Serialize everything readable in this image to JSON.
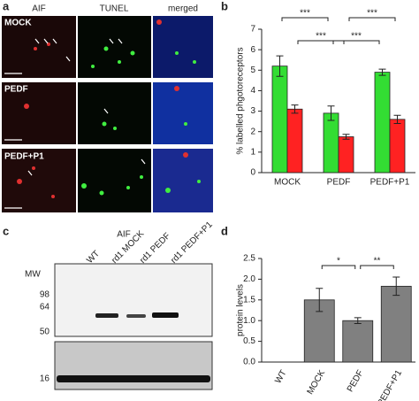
{
  "panel_labels": [
    "a",
    "b",
    "c",
    "d"
  ],
  "panel_a": {
    "columns": [
      "AIF",
      "TUNEL",
      "merged"
    ],
    "rows": [
      "MOCK",
      "PEDF",
      "PEDF+P1"
    ]
  },
  "panel_c": {
    "title": "AIF",
    "lanes": [
      "WT",
      "rd1 MOCK",
      "rd1 PEDF",
      "rd1 PEDF+P1"
    ],
    "mw_label": "MW",
    "markers": [
      98,
      64,
      50,
      16
    ]
  },
  "chart_data": [
    {
      "type": "bar",
      "ylabel": "% labelled phgotoreceptors",
      "categories": [
        "MOCK",
        "PEDF",
        "PEDF+P1"
      ],
      "series": [
        {
          "color": "#33dd33",
          "values": [
            5.2,
            2.9,
            4.9
          ],
          "errors": [
            0.5,
            0.35,
            0.15
          ]
        },
        {
          "color": "#ff2222",
          "values": [
            3.1,
            1.75,
            2.6
          ],
          "errors": [
            0.2,
            0.12,
            0.2
          ]
        }
      ],
      "ylim": [
        0,
        7
      ],
      "yticks": [
        0,
        1,
        2,
        3,
        4,
        5,
        6,
        7
      ],
      "annotations": [
        "***",
        "***",
        "***",
        "***"
      ]
    },
    {
      "type": "bar",
      "ylabel": "protein levels",
      "categories": [
        "WT",
        "MOCK",
        "PEDF",
        "PEDF+P1"
      ],
      "values": [
        0,
        1.5,
        1.0,
        1.83
      ],
      "errors": [
        0,
        0.28,
        0.07,
        0.22
      ],
      "color": "#808080",
      "ylim": [
        0,
        2.5
      ],
      "yticks": [
        {
          "value": 0,
          "label": "0.0"
        },
        0.5,
        {
          "value": 1,
          "label": "1.0"
        },
        1.5,
        {
          "value": 2,
          "label": "2.0"
        },
        2.5
      ],
      "annotations": [
        "*",
        "**"
      ]
    }
  ]
}
